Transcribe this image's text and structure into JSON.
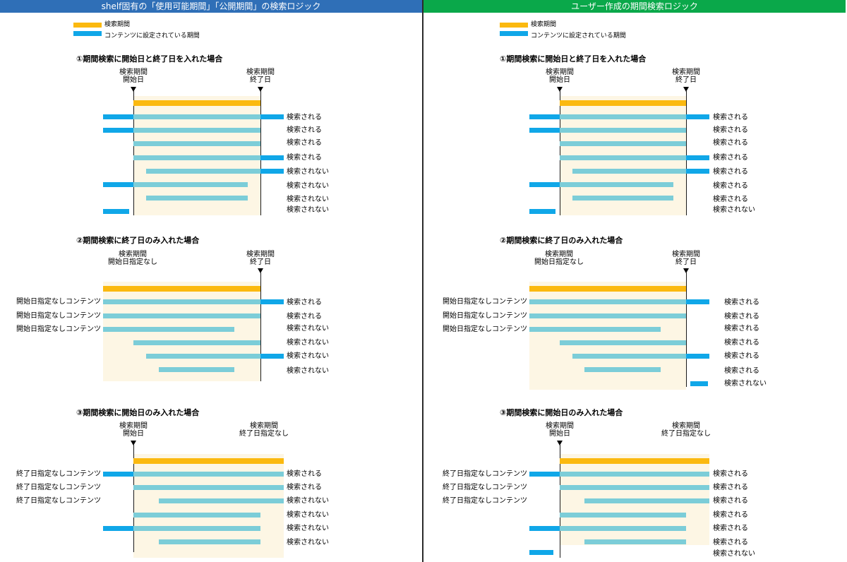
{
  "colors": {
    "left_header": "#2f6fb7",
    "right_header": "#0aa84a",
    "period_bar": "#fbb90f",
    "content_outside": "#10a7e8",
    "content_inside": "#7ccdd8",
    "shade": "#fdf6e4"
  },
  "panels": [
    {
      "header": "shelf固有の「使用可能期間」「公開期間」の検索ロジック",
      "legend": {
        "period": "検索期間",
        "content": "コンテンツに設定されている期間"
      },
      "sections": [
        {
          "title": "①期間検索に開始日と終了日を入れた場合",
          "start_label": [
            "検索期間",
            "開始日"
          ],
          "end_label": [
            "検索期間",
            "終了日"
          ],
          "rows": [
            {
              "label": "",
              "result": "検索される"
            },
            {
              "label": "",
              "result": "検索される"
            },
            {
              "label": "",
              "result": "検索される"
            },
            {
              "label": "",
              "result": "検索される"
            },
            {
              "label": "",
              "result": "検索されない"
            },
            {
              "label": "",
              "result": "検索されない"
            },
            {
              "label": "",
              "result": "検索されない"
            },
            {
              "label": "",
              "result": "検索されない"
            }
          ]
        },
        {
          "title": "②期間検索に終了日のみ入れた場合",
          "start_label": [
            "検索期間",
            "開始日指定なし"
          ],
          "end_label": [
            "検索期間",
            "終了日"
          ],
          "rows": [
            {
              "label": "開始日指定なしコンテンツ",
              "result": "検索される"
            },
            {
              "label": "開始日指定なしコンテンツ",
              "result": "検索される"
            },
            {
              "label": "開始日指定なしコンテンツ",
              "result": "検索されない"
            },
            {
              "label": "",
              "result": "検索されない"
            },
            {
              "label": "",
              "result": "検索されない"
            },
            {
              "label": "",
              "result": "検索されない"
            }
          ]
        },
        {
          "title": "③期間検索に開始日のみ入れた場合",
          "start_label": [
            "検索期間",
            "開始日"
          ],
          "end_label": [
            "検索期間",
            "終了日指定なし"
          ],
          "rows": [
            {
              "label": "終了日指定なしコンテンツ",
              "result": "検索される"
            },
            {
              "label": "終了日指定なしコンテンツ",
              "result": "検索される"
            },
            {
              "label": "終了日指定なしコンテンツ",
              "result": "検索されない"
            },
            {
              "label": "",
              "result": "検索されない"
            },
            {
              "label": "",
              "result": "検索されない"
            },
            {
              "label": "",
              "result": "検索されない"
            }
          ]
        }
      ]
    },
    {
      "header": "ユーザー作成の期間検索ロジック",
      "legend": {
        "period": "検索期間",
        "content": "コンテンツに設定されている期間"
      },
      "sections": [
        {
          "title": "①期間検索に開始日と終了日を入れた場合",
          "start_label": [
            "検索期間",
            "開始日"
          ],
          "end_label": [
            "検索期間",
            "終了日"
          ],
          "rows": [
            {
              "label": "",
              "result": "検索される"
            },
            {
              "label": "",
              "result": "検索される"
            },
            {
              "label": "",
              "result": "検索される"
            },
            {
              "label": "",
              "result": "検索される"
            },
            {
              "label": "",
              "result": "検索される"
            },
            {
              "label": "",
              "result": "検索される"
            },
            {
              "label": "",
              "result": "検索される"
            },
            {
              "label": "",
              "result": "検索されない"
            }
          ]
        },
        {
          "title": "②期間検索に終了日のみ入れた場合",
          "start_label": [
            "検索期間",
            "開始日指定なし"
          ],
          "end_label": [
            "検索期間",
            "終了日"
          ],
          "rows": [
            {
              "label": "開始日指定なしコンテンツ",
              "result": "検索される"
            },
            {
              "label": "開始日指定なしコンテンツ",
              "result": "検索される"
            },
            {
              "label": "開始日指定なしコンテンツ",
              "result": "検索される"
            },
            {
              "label": "",
              "result": "検索される"
            },
            {
              "label": "",
              "result": "検索される"
            },
            {
              "label": "",
              "result": "検索される"
            },
            {
              "label": "",
              "result": "検索されない"
            }
          ]
        },
        {
          "title": "③期間検索に開始日のみ入れた場合",
          "start_label": [
            "検索期間",
            "開始日"
          ],
          "end_label": [
            "検索期間",
            "終了日指定なし"
          ],
          "rows": [
            {
              "label": "終了日指定なしコンテンツ",
              "result": "検索される"
            },
            {
              "label": "終了日指定なしコンテンツ",
              "result": "検索される"
            },
            {
              "label": "終了日指定なしコンテンツ",
              "result": "検索される"
            },
            {
              "label": "",
              "result": "検索される"
            },
            {
              "label": "",
              "result": "検索される"
            },
            {
              "label": "",
              "result": "検索される"
            },
            {
              "label": "",
              "result": "検索されない"
            }
          ]
        }
      ]
    }
  ]
}
